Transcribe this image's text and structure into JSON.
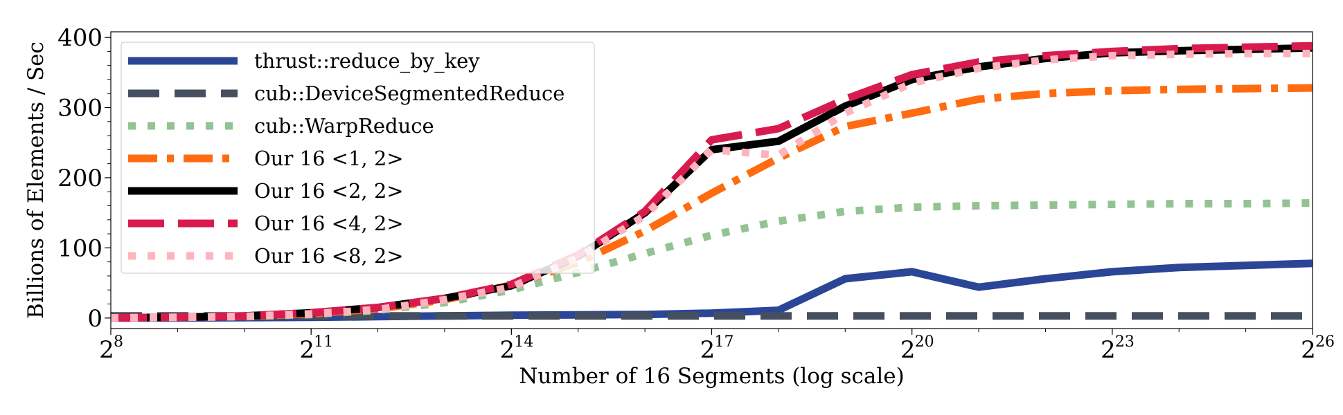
{
  "chart_data": {
    "type": "line",
    "title": "",
    "xlabel": "Number of 16 Segments (log scale)",
    "ylabel": "Billions of Elements / Sec",
    "x_scale": "log2",
    "xlim": [
      256,
      67108864
    ],
    "ylim": [
      -15,
      408
    ],
    "grid": false,
    "legend_position": "top-left",
    "x_ticks": [
      {
        "value": 256,
        "label": "2",
        "sup": "8"
      },
      {
        "value": 2048,
        "label": "2",
        "sup": "11"
      },
      {
        "value": 16384,
        "label": "2",
        "sup": "14"
      },
      {
        "value": 131072,
        "label": "2",
        "sup": "17"
      },
      {
        "value": 1048576,
        "label": "2",
        "sup": "20"
      },
      {
        "value": 8388608,
        "label": "2",
        "sup": "23"
      },
      {
        "value": 67108864,
        "label": "2",
        "sup": "26"
      }
    ],
    "y_ticks": [
      {
        "value": 0,
        "label": "0"
      },
      {
        "value": 100,
        "label": "100"
      },
      {
        "value": 200,
        "label": "200"
      },
      {
        "value": 300,
        "label": "300"
      },
      {
        "value": 400,
        "label": "400"
      }
    ],
    "x": [
      256,
      512,
      1024,
      2048,
      4096,
      8192,
      16384,
      32768,
      65536,
      131072,
      262144,
      524288,
      1048576,
      2097152,
      4194304,
      8388608,
      16777216,
      33554432,
      67108864
    ],
    "series": [
      {
        "name": "thrust::reduce_by_key",
        "color": "#2b4696",
        "style": "solid",
        "values": [
          0,
          0.2,
          0.5,
          1,
          2,
          3,
          4,
          4.5,
          5,
          7,
          11,
          56,
          66,
          44,
          56,
          66,
          72,
          75,
          78
        ]
      },
      {
        "name": "cub::DeviceSegmentedReduce",
        "color": "#454f5f",
        "style": "dashed",
        "values": [
          3,
          3,
          3,
          3,
          3,
          3,
          3,
          3,
          3,
          3,
          3,
          3,
          3,
          3,
          3,
          3,
          3,
          3,
          3
        ]
      },
      {
        "name": "cub::WarpReduce",
        "color": "#93c393",
        "style": "dotted",
        "values": [
          0.3,
          1,
          2,
          5,
          11,
          22,
          40,
          65,
          92,
          118,
          138,
          152,
          158,
          160,
          161,
          162,
          163,
          163,
          164
        ]
      },
      {
        "name": "Our 16 <1, 2>",
        "color": "#ff6b10",
        "style": "dashdot",
        "values": [
          0.3,
          1,
          2.5,
          6,
          13,
          26,
          47,
          79,
          124,
          178,
          228,
          273,
          292,
          312,
          320,
          324,
          326,
          327,
          328
        ]
      },
      {
        "name": "Our 16 <2, 2>",
        "color": "#000000",
        "style": "solid",
        "values": [
          0.4,
          1.2,
          3,
          7.5,
          15,
          28,
          46,
          88,
          150,
          240,
          252,
          302,
          340,
          358,
          370,
          378,
          381,
          383,
          385
        ]
      },
      {
        "name": "Our 16 <4, 2>",
        "color": "#d81b4e",
        "style": "longdash",
        "values": [
          0.4,
          1.2,
          3,
          7.5,
          15,
          28,
          48,
          90,
          152,
          254,
          270,
          312,
          347,
          365,
          374,
          380,
          384,
          386,
          388
        ]
      },
      {
        "name": "Our 16 <8, 2>",
        "color": "#ffb3bd",
        "style": "dotted",
        "values": [
          0.3,
          1,
          2.5,
          6,
          12,
          26,
          44,
          86,
          146,
          240,
          232,
          292,
          335,
          356,
          368,
          374,
          376,
          377,
          377
        ]
      }
    ]
  }
}
